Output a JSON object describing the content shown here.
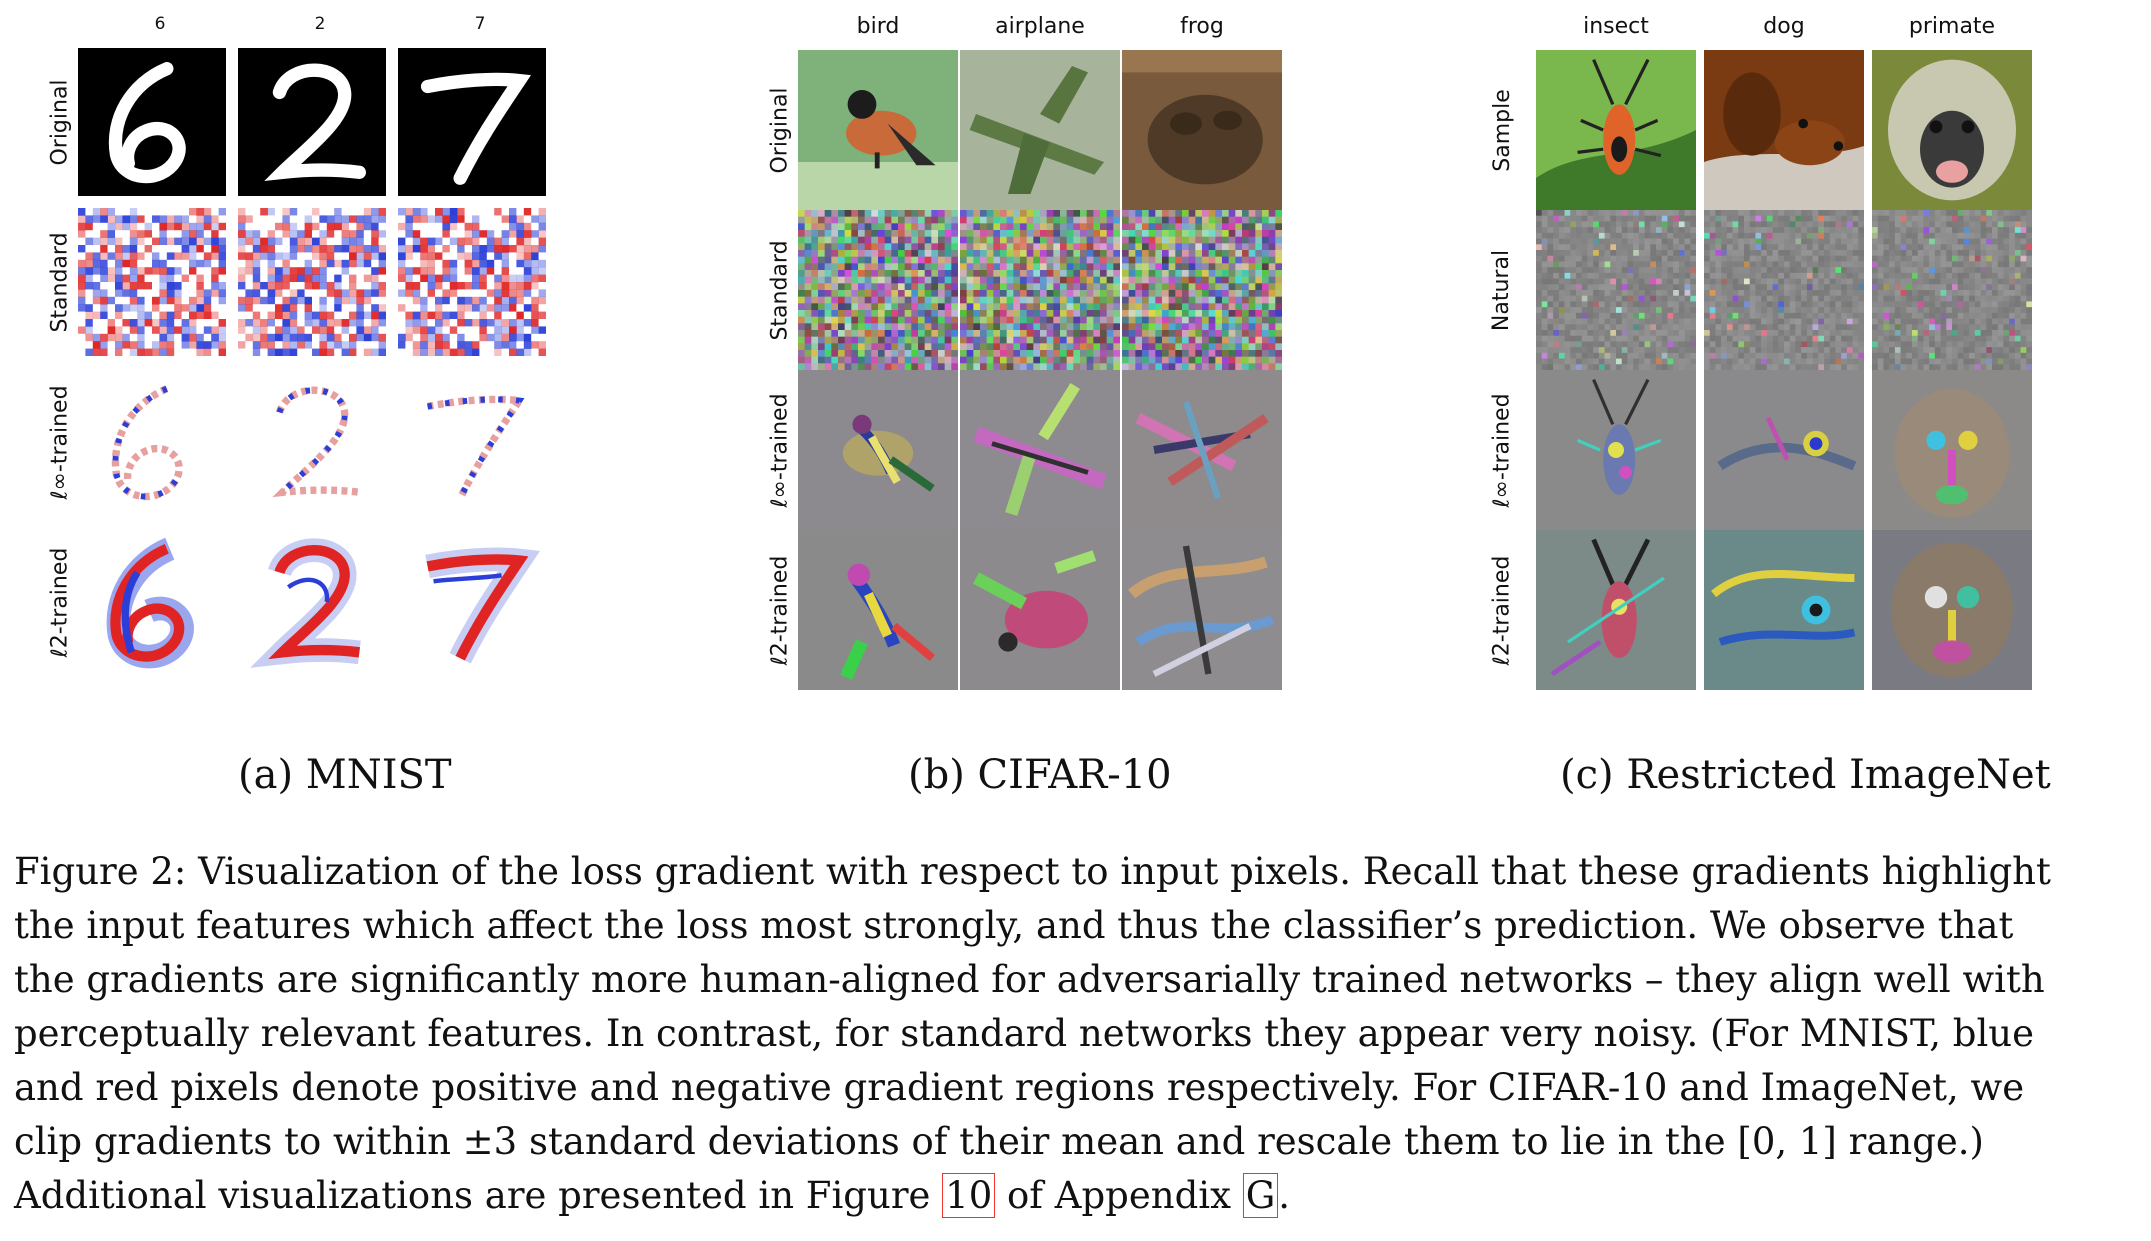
{
  "panels": [
    {
      "id": "a",
      "columns": [
        "6",
        "2",
        "7"
      ],
      "rows": [
        "Original",
        "Standard",
        "ℓ∞-trained",
        "ℓ2-trained"
      ],
      "subcaption": "(a) MNIST"
    },
    {
      "id": "b",
      "columns": [
        "bird",
        "airplane",
        "frog"
      ],
      "rows": [
        "Original",
        "Standard",
        "ℓ∞-trained",
        "ℓ2-trained"
      ],
      "subcaption": "(b) CIFAR-10"
    },
    {
      "id": "c",
      "columns": [
        "insect",
        "dog",
        "primate"
      ],
      "rows": [
        "Sample",
        "Natural",
        "ℓ∞-trained",
        "ℓ2-trained"
      ],
      "subcaption": "(c) Restricted ImageNet"
    }
  ],
  "caption": {
    "lines": [
      "Figure 2: Visualization of the loss gradient with respect to input pixels. Recall that these gradients highlight",
      "the input features which affect the loss most strongly, and thus the classifier’s prediction. We observe that",
      "the gradients are significantly more human-aligned for adversarially trained networks – they align well with",
      "perceptually relevant features. In contrast, for standard networks they appear very noisy. (For MNIST, blue",
      "and red pixels denote positive and negative gradient regions respectively. For CIFAR-10 and ImageNet, we",
      "clip gradients to within ±3 standard deviations of their mean and rescale them to lie in the [0, 1] range.)"
    ],
    "last_line": {
      "before": "Additional visualizations are presented in Figure ",
      "figure_ref": "10",
      "middle": " of Appendix ",
      "appendix_ref": "G",
      "after": "."
    }
  },
  "colors": {
    "mnist_positive": "#2b3fd8",
    "mnist_negative": "#e02424",
    "gradient_gray": "#8a8a8a",
    "ref_box": "#ee3333"
  }
}
